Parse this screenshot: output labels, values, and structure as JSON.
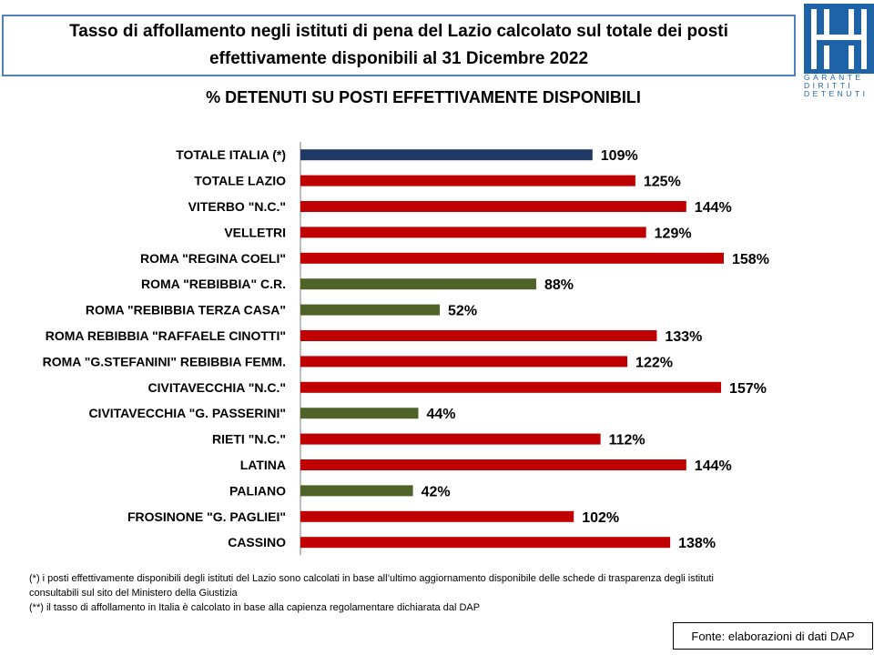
{
  "header": {
    "title_line1": "Tasso di affollamento negli istituti di pena del Lazio calcolato sul totale dei posti",
    "title_line2": "effettivamente disponibili al 31 Dicembre  2022"
  },
  "logo": {
    "text_lines": [
      "GARANTE",
      "DIRITTI",
      "DETENUTI"
    ],
    "color": "#1e62a8"
  },
  "chart_title": "% DETENUTI SU POSTI EFFETTIVAMENTE DISPONIBILI",
  "chart_data": {
    "type": "bar",
    "orientation": "horizontal",
    "categories": [
      "TOTALE ITALIA (*)",
      "TOTALE LAZIO",
      "VITERBO \"N.C.\"",
      "VELLETRI",
      "ROMA \"REGINA COELI\"",
      "ROMA \"REBIBBIA\" C.R.",
      "ROMA \"REBIBBIA TERZA CASA\"",
      "ROMA REBIBBIA \"RAFFAELE CINOTTI\"",
      "ROMA \"G.STEFANINI\" REBIBBIA FEMM.",
      "CIVITAVECCHIA \"N.C.\"",
      "CIVITAVECCHIA \"G. PASSERINI\"",
      "RIETI \"N.C.\"",
      "LATINA",
      "PALIANO",
      "FROSINONE \"G. PAGLIEI\"",
      "CASSINO"
    ],
    "values": [
      109,
      125,
      144,
      129,
      158,
      88,
      52,
      133,
      122,
      157,
      44,
      112,
      144,
      42,
      102,
      138
    ],
    "value_labels": [
      "109%",
      "125%",
      "144%",
      "129%",
      "158%",
      "88%",
      "52%",
      "133%",
      "122%",
      "157%",
      "44%",
      "112%",
      "144%",
      "42%",
      "102%",
      "138%"
    ],
    "bar_colors": [
      "#1f3864",
      "#c00000",
      "#c00000",
      "#c00000",
      "#c00000",
      "#4f6228",
      "#4f6228",
      "#c00000",
      "#c00000",
      "#c00000",
      "#4f6228",
      "#c00000",
      "#c00000",
      "#4f6228",
      "#c00000",
      "#c00000"
    ],
    "xlim": [
      0,
      200
    ],
    "grid": false
  },
  "notes": {
    "line1": "(*) i posti effettivamente disponibili  degli istituti del Lazio sono  calcolati in base all’ultimo aggiornamento disponibile  delle schede  di trasparenza degli istituti",
    "line2": "consultabili  sul sito del Ministero della Giustizia",
    "line3": "(**) il tasso di affollamento  in Italia è calcolato in base alla capienza regolamentare dichiarata dal DAP"
  },
  "source": "Fonte: elaborazioni di dati DAP"
}
